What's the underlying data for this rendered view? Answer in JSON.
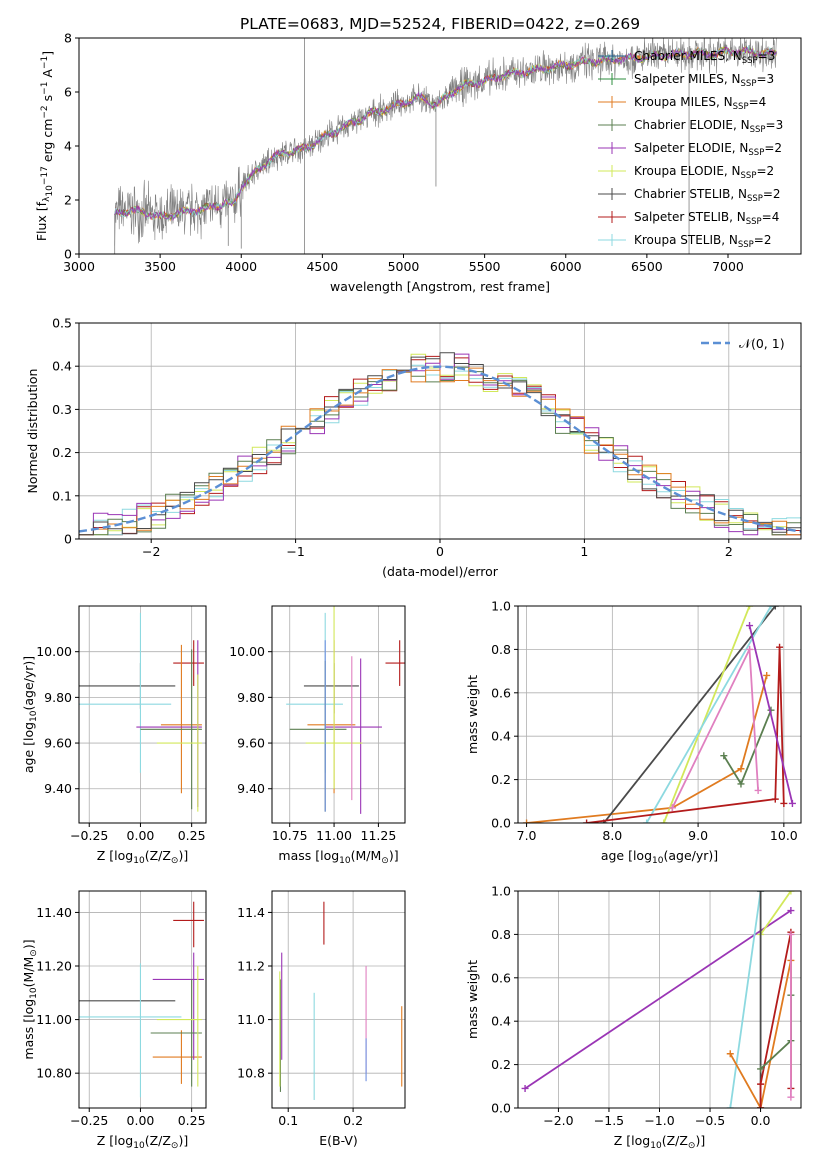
{
  "figure": {
    "title": "PLATE=0683, MJD=52524, FIBERID=0422, z=0.269",
    "colors": {
      "chabrier_miles": "#1f5f8f",
      "salpeter_miles": "#2c8d3c",
      "kroupa_miles": "#e07b20",
      "chabrier_elodie": "#5b7f50",
      "salpeter_elodie": "#9a35b5",
      "kroupa_elodie": "#d2e85a",
      "chabrier_stelib": "#4a4a4a",
      "salpeter_stelib": "#b31b1b",
      "kroupa_stelib": "#8dd9e0",
      "data": "#808080",
      "normal": "#5b8fd4",
      "grid": "#b0b0b0",
      "pink": "#e080c0",
      "blue": "#7090e0"
    }
  },
  "chart_data": [
    {
      "id": "spectrum",
      "type": "line",
      "xlabel": "wavelength [Angstrom, rest frame]",
      "ylabel": "Flux [f",
      "ylabel_parts": [
        "Flux [f",
        "λ",
        "10",
        "−17",
        " erg cm",
        "−2",
        " s",
        "−1",
        " A",
        "−1",
        "]"
      ],
      "xlim": [
        3000,
        7450
      ],
      "ylim": [
        0,
        8
      ],
      "xticks": [
        3000,
        3500,
        4000,
        4500,
        5000,
        5500,
        6000,
        6500,
        7000
      ],
      "yticks": [
        0,
        2,
        4,
        6,
        8
      ],
      "grid": false,
      "legend_position": "top-right",
      "legend": [
        {
          "label": "Chabrier MILES, N",
          "sub": "SSP",
          "tail": "=3",
          "color": "chabrier_miles"
        },
        {
          "label": "Salpeter MILES, N",
          "sub": "SSP",
          "tail": "=3",
          "color": "salpeter_miles"
        },
        {
          "label": "Kroupa MILES, N",
          "sub": "SSP",
          "tail": "=4",
          "color": "kroupa_miles"
        },
        {
          "label": "Chabrier ELODIE, N",
          "sub": "SSP",
          "tail": "=3",
          "color": "chabrier_elodie"
        },
        {
          "label": "Salpeter ELODIE, N",
          "sub": "SSP",
          "tail": "=2",
          "color": "salpeter_elodie"
        },
        {
          "label": "Kroupa ELODIE, N",
          "sub": "SSP",
          "tail": "=2",
          "color": "kroupa_elodie"
        },
        {
          "label": "Chabrier STELIB, N",
          "sub": "SSP",
          "tail": "=2",
          "color": "chabrier_stelib"
        },
        {
          "label": "Salpeter STELIB, N",
          "sub": "SSP",
          "tail": "=4",
          "color": "salpeter_stelib"
        },
        {
          "label": "Kroupa STELIB, N",
          "sub": "SSP",
          "tail": "=2",
          "color": "kroupa_stelib"
        }
      ],
      "continuum": {
        "x": [
          3220,
          3300,
          3400,
          3500,
          3600,
          3700,
          3800,
          3900,
          3950,
          4000,
          4100,
          4200,
          4300,
          4400,
          4500,
          4600,
          4700,
          4800,
          4900,
          5000,
          5100,
          5200,
          5300,
          5400,
          5500,
          5600,
          5700,
          5800,
          5900,
          6000,
          6100,
          6200,
          6300,
          6400,
          6500,
          6600,
          6700,
          6800,
          6900,
          7000,
          7100,
          7200,
          7300
        ],
        "y": [
          1.5,
          1.6,
          1.55,
          1.35,
          1.5,
          1.6,
          1.7,
          1.9,
          1.8,
          2.5,
          3.1,
          3.6,
          3.8,
          3.9,
          4.3,
          4.6,
          4.9,
          5.2,
          5.4,
          5.6,
          5.8,
          5.5,
          6.0,
          6.3,
          6.4,
          6.6,
          6.7,
          6.8,
          6.9,
          7.0,
          7.1,
          7.15,
          7.2,
          7.25,
          7.3,
          7.35,
          7.4,
          7.45,
          7.4,
          7.5,
          7.5,
          7.45,
          7.4
        ]
      },
      "spikes": [
        [
          4390,
          0,
          8
        ],
        [
          6760,
          0,
          8
        ],
        [
          3220,
          0,
          1.5
        ],
        [
          4000,
          0.2,
          2.5
        ],
        [
          3920,
          0.3,
          1.8
        ],
        [
          5200,
          2.5,
          5.8
        ]
      ]
    },
    {
      "id": "residuals",
      "type": "step",
      "xlabel": "(data-model)/error",
      "ylabel": "Normed distribution",
      "xlim": [
        -2.5,
        2.5
      ],
      "ylim": [
        0,
        0.5
      ],
      "xticks": [
        -2,
        -1,
        0,
        1,
        2
      ],
      "yticks": [
        0.0,
        0.1,
        0.2,
        0.3,
        0.4,
        0.5
      ],
      "grid": true,
      "legend_position": "top-right",
      "legend": [
        {
          "label": "𝒩(0, 1)",
          "color": "normal"
        }
      ]
    },
    {
      "id": "age_vs_z",
      "type": "errorbar",
      "xlabel": "Z [log",
      "xlabel_parts": [
        "Z [log",
        "10",
        "(Z/Z",
        "⊙",
        ")]"
      ],
      "ylabel_parts": [
        "age  [log",
        "10",
        "(age/yr)]"
      ],
      "xlim": [
        -0.3,
        0.32
      ],
      "ylim": [
        9.25,
        10.2
      ],
      "xticks": [
        -0.25,
        0.0,
        0.25
      ],
      "yticks": [
        9.4,
        9.6,
        9.8,
        10.0
      ],
      "grid": true,
      "points": [
        {
          "x": 0.26,
          "y": 9.95,
          "xerr": [
            0.1,
            0.05
          ],
          "yerr": [
            0.1,
            0.1
          ],
          "color": "salpeter_stelib"
        },
        {
          "x": 0.0,
          "y": 9.85,
          "xerr": [
            0.3,
            0.17
          ],
          "yerr": [
            0.1,
            0.1
          ],
          "color": "chabrier_stelib"
        },
        {
          "x": 0.0,
          "y": 9.77,
          "xerr": [
            0.3,
            0.15
          ],
          "yerr": [
            0.3,
            0.4
          ],
          "color": "kroupa_stelib"
        },
        {
          "x": 0.2,
          "y": 9.68,
          "xerr": [
            0.1,
            0.1
          ],
          "yerr": [
            0.3,
            0.35
          ],
          "color": "kroupa_miles"
        },
        {
          "x": 0.28,
          "y": 9.67,
          "xerr": [
            0.3,
            0.02
          ],
          "yerr": [
            0.35,
            0.38
          ],
          "color": "salpeter_elodie"
        },
        {
          "x": 0.25,
          "y": 9.66,
          "xerr": [
            0.25,
            0.05
          ],
          "yerr": [
            0.35,
            0.35
          ],
          "color": "chabrier_elodie"
        },
        {
          "x": 0.28,
          "y": 9.6,
          "xerr": [
            0.2,
            0.02
          ],
          "yerr": [
            0.3,
            0.3
          ],
          "color": "kroupa_elodie"
        }
      ]
    },
    {
      "id": "age_vs_mass",
      "type": "errorbar",
      "xlabel_parts": [
        "mass [log",
        "10",
        "(M/M",
        "⊙",
        ")]"
      ],
      "xlim": [
        10.65,
        11.4
      ],
      "ylim": [
        9.25,
        10.2
      ],
      "xticks": [
        10.75,
        11.0,
        11.25
      ],
      "yticks": [
        9.4,
        9.6,
        9.8,
        10.0
      ],
      "grid": true,
      "points": [
        {
          "x": 11.37,
          "y": 9.95,
          "xerr": [
            0.08,
            0.08
          ],
          "yerr": [
            0.1,
            0.1
          ],
          "color": "salpeter_stelib"
        },
        {
          "x": 11.0,
          "y": 9.85,
          "xerr": [
            0.17,
            0.14
          ],
          "yerr": [
            0.12,
            0.1
          ],
          "color": "chabrier_stelib"
        },
        {
          "x": 10.95,
          "y": 9.77,
          "xerr": [
            0.22,
            0.1
          ],
          "yerr": [
            0.3,
            0.4
          ],
          "color": "kroupa_stelib"
        },
        {
          "x": 11.0,
          "y": 9.68,
          "xerr": [
            0.15,
            0.12
          ],
          "yerr": [
            0.3,
            0.37
          ],
          "color": "kroupa_miles"
        },
        {
          "x": 11.15,
          "y": 9.67,
          "xerr": [
            0.2,
            0.12
          ],
          "yerr": [
            0.38,
            0.3
          ],
          "color": "salpeter_elodie"
        },
        {
          "x": 10.95,
          "y": 9.66,
          "xerr": [
            0.2,
            0.12
          ],
          "yerr": [
            0.36,
            0.3
          ],
          "color": "chabrier_elodie"
        },
        {
          "x": 11.0,
          "y": 9.6,
          "xerr": [
            0.16,
            0.16
          ],
          "yerr": [
            0.2,
            0.6
          ],
          "color": "kroupa_elodie"
        },
        {
          "x": 11.1,
          "y": 9.7,
          "xerr": [
            0.0,
            0.0
          ],
          "yerr": [
            0.35,
            0.28
          ],
          "color": "pink"
        },
        {
          "x": 10.95,
          "y": 9.75,
          "xerr": [
            0.0,
            0.0
          ],
          "yerr": [
            0.45,
            0.3
          ],
          "color": "blue"
        }
      ]
    },
    {
      "id": "mass_weight_vs_age",
      "type": "line",
      "xlabel_parts": [
        "age  [log",
        "10",
        "(age/yr)]"
      ],
      "ylabel": "mass weight",
      "xlim": [
        6.9,
        10.2
      ],
      "ylim": [
        0,
        1
      ],
      "xticks": [
        7,
        8,
        9,
        10
      ],
      "yticks": [
        0.0,
        0.2,
        0.4,
        0.6,
        0.8,
        1.0
      ],
      "grid": true,
      "series": [
        {
          "color": "kroupa_miles",
          "x": [
            7.0,
            8.7,
            9.5,
            9.8
          ],
          "y": [
            0.0,
            0.07,
            0.25,
            0.68
          ]
        },
        {
          "color": "chabrier_stelib",
          "x": [
            7.9,
            9.9
          ],
          "y": [
            0.0,
            1.0
          ]
        },
        {
          "color": "kroupa_elodie",
          "x": [
            8.6,
            9.6
          ],
          "y": [
            0.0,
            1.0
          ]
        },
        {
          "color": "kroupa_stelib",
          "x": [
            8.4,
            9.85
          ],
          "y": [
            0.0,
            1.0
          ]
        },
        {
          "color": "salpeter_stelib",
          "x": [
            7.7,
            9.9,
            9.95,
            10.0
          ],
          "y": [
            0.0,
            0.11,
            0.81,
            0.09
          ]
        },
        {
          "color": "chabrier_elodie",
          "x": [
            9.3,
            9.5,
            9.85
          ],
          "y": [
            0.31,
            0.18,
            0.52
          ]
        },
        {
          "color": "salpeter_elodie",
          "x": [
            9.6,
            10.1
          ],
          "y": [
            0.91,
            0.09
          ]
        },
        {
          "color": "pink",
          "x": [
            8.7,
            9.6,
            9.7
          ],
          "y": [
            0.07,
            0.8,
            0.15
          ]
        }
      ]
    },
    {
      "id": "mass_vs_z",
      "type": "errorbar",
      "xlabel_parts": [
        "Z [log",
        "10",
        "(Z/Z",
        "⊙",
        ")]"
      ],
      "ylabel_parts": [
        "mass [log",
        "10",
        "(M/M",
        "⊙",
        ")]"
      ],
      "xlim": [
        -0.3,
        0.32
      ],
      "ylim": [
        10.67,
        11.48
      ],
      "xticks": [
        -0.25,
        0.0,
        0.25
      ],
      "yticks": [
        10.8,
        11.0,
        11.2,
        11.4
      ],
      "grid": true,
      "points": [
        {
          "x": 0.26,
          "y": 11.37,
          "xerr": [
            0.1,
            0.05
          ],
          "yerr": [
            0.1,
            0.07
          ],
          "color": "salpeter_stelib"
        },
        {
          "x": 0.0,
          "y": 11.07,
          "xerr": [
            0.3,
            0.17
          ],
          "yerr": [
            0.0,
            0.0
          ],
          "color": "chabrier_stelib"
        },
        {
          "x": 0.0,
          "y": 11.01,
          "xerr": [
            0.3,
            0.2
          ],
          "yerr": [
            0.3,
            0.2
          ],
          "color": "kroupa_stelib"
        },
        {
          "x": 0.2,
          "y": 10.86,
          "xerr": [
            0.14,
            0.1
          ],
          "yerr": [
            0.1,
            0.1
          ],
          "color": "kroupa_miles"
        },
        {
          "x": 0.26,
          "y": 11.15,
          "xerr": [
            0.2,
            0.05
          ],
          "yerr": [
            0.3,
            0.1
          ],
          "color": "salpeter_elodie"
        },
        {
          "x": 0.25,
          "y": 10.95,
          "xerr": [
            0.2,
            0.05
          ],
          "yerr": [
            0.2,
            0.2
          ],
          "color": "chabrier_elodie"
        },
        {
          "x": 0.28,
          "y": 11.0,
          "xerr": [
            0.2,
            0.02
          ],
          "yerr": [
            0.25,
            0.2
          ],
          "color": "kroupa_elodie"
        }
      ]
    },
    {
      "id": "mass_vs_ebv",
      "type": "errorbar",
      "xlabel": "E(B-V)",
      "xlim": [
        0.075,
        0.28
      ],
      "ylim": [
        10.67,
        11.48
      ],
      "xticks": [
        0.1,
        0.2
      ],
      "yticks": [
        10.8,
        11.0,
        11.2,
        11.4
      ],
      "grid": true,
      "points": [
        {
          "x": 0.155,
          "y": 11.36,
          "xerr": [
            0,
            0
          ],
          "yerr": [
            0.08,
            0.08
          ],
          "color": "salpeter_stelib"
        },
        {
          "x": 0.09,
          "y": 11.05,
          "xerr": [
            0,
            0
          ],
          "yerr": [
            0.2,
            0.2
          ],
          "color": "salpeter_elodie"
        },
        {
          "x": 0.088,
          "y": 10.95,
          "xerr": [
            0,
            0
          ],
          "yerr": [
            0.22,
            0.2
          ],
          "color": "chabrier_elodie"
        },
        {
          "x": 0.087,
          "y": 10.95,
          "xerr": [
            0,
            0
          ],
          "yerr": [
            0.2,
            0.23
          ],
          "color": "kroupa_elodie"
        },
        {
          "x": 0.14,
          "y": 10.9,
          "xerr": [
            0,
            0
          ],
          "yerr": [
            0.2,
            0.2
          ],
          "color": "kroupa_stelib"
        },
        {
          "x": 0.22,
          "y": 11.0,
          "xerr": [
            0,
            0
          ],
          "yerr": [
            0.2,
            0.2
          ],
          "color": "pink"
        },
        {
          "x": 0.22,
          "y": 10.85,
          "xerr": [
            0,
            0
          ],
          "yerr": [
            0.08,
            0.08
          ],
          "color": "blue"
        },
        {
          "x": 0.275,
          "y": 10.9,
          "xerr": [
            0,
            0
          ],
          "yerr": [
            0.15,
            0.15
          ],
          "color": "kroupa_miles"
        }
      ]
    },
    {
      "id": "mass_weight_vs_z",
      "type": "line",
      "xlabel_parts": [
        "Z [log",
        "10",
        "(Z/Z",
        "⊙",
        ")]"
      ],
      "ylabel": "mass weight",
      "xlim": [
        -2.4,
        0.4
      ],
      "ylim": [
        0,
        1
      ],
      "xticks": [
        -2.0,
        -1.5,
        -1.0,
        -0.5,
        0.0
      ],
      "yticks": [
        0.0,
        0.2,
        0.4,
        0.6,
        0.8,
        1.0
      ],
      "grid": true,
      "series": [
        {
          "color": "salpeter_elodie",
          "x": [
            -2.33,
            0.3
          ],
          "y": [
            0.09,
            0.91
          ]
        },
        {
          "color": "kroupa_stelib",
          "x": [
            -0.3,
            0.0
          ],
          "y": [
            0.0,
            1.0
          ]
        },
        {
          "color": "kroupa_elodie",
          "x": [
            0.0,
            0.3
          ],
          "y": [
            0.8,
            1.0
          ]
        },
        {
          "color": "chabrier_stelib",
          "x": [
            0.0,
            0.0
          ],
          "y": [
            0.0,
            1.0
          ]
        },
        {
          "color": "kroupa_miles",
          "x": [
            -0.3,
            0.0,
            0.3
          ],
          "y": [
            0.25,
            0.0,
            0.68
          ]
        },
        {
          "color": "salpeter_stelib",
          "x": [
            0.0,
            0.0,
            0.3,
            0.3
          ],
          "y": [
            0.0,
            0.11,
            0.81,
            0.09
          ]
        },
        {
          "color": "chabrier_elodie",
          "x": [
            0.0,
            0.3,
            0.3
          ],
          "y": [
            0.18,
            0.31,
            0.52
          ]
        },
        {
          "color": "pink",
          "x": [
            0.3,
            0.3
          ],
          "y": [
            0.05,
            0.8
          ]
        }
      ]
    }
  ]
}
